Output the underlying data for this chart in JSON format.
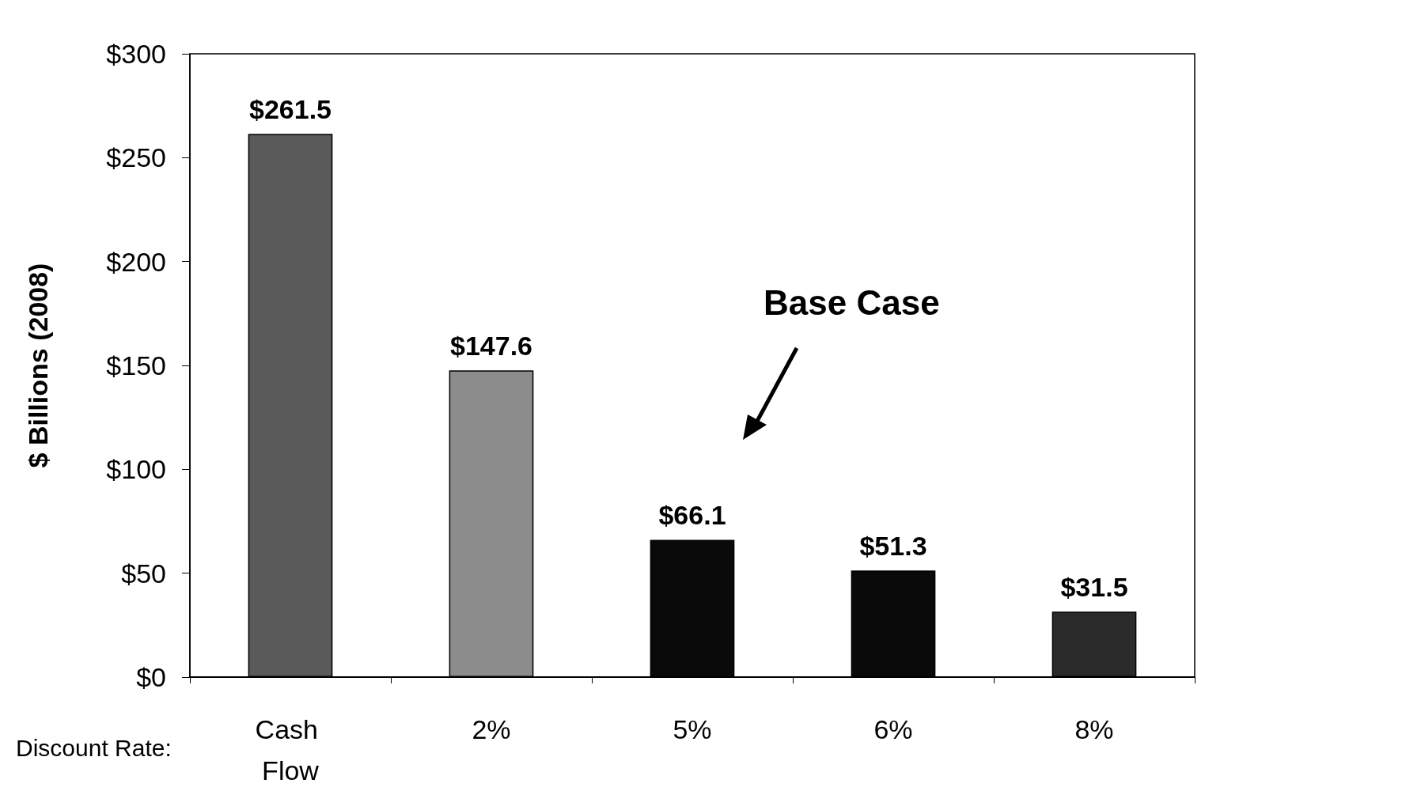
{
  "chart_data": {
    "type": "bar",
    "categories": [
      "Cash Flow",
      "2%",
      "5%",
      "6%",
      "8%"
    ],
    "values": [
      261.5,
      147.6,
      66.1,
      51.3,
      31.5
    ],
    "colors": [
      "#5a5a5a",
      "#8c8c8c",
      "#0a0a0a",
      "#0a0a0a",
      "#2a2a2a"
    ],
    "value_labels": [
      "$261.5",
      "$147.6",
      "$66.1",
      "$51.3",
      "$31.5"
    ],
    "ylabel": "$ Billions (2008)",
    "xlabel": "Discount Rate:",
    "ylim": [
      0,
      300
    ],
    "yticks": [
      {
        "value": 0,
        "label": "$0"
      },
      {
        "value": 50,
        "label": "$50"
      },
      {
        "value": 100,
        "label": "$100"
      },
      {
        "value": 150,
        "label": "$150"
      },
      {
        "value": 200,
        "label": "$200"
      },
      {
        "value": 250,
        "label": "$250"
      },
      {
        "value": 300,
        "label": "$300"
      }
    ],
    "annotations": [
      "Base Case"
    ]
  }
}
